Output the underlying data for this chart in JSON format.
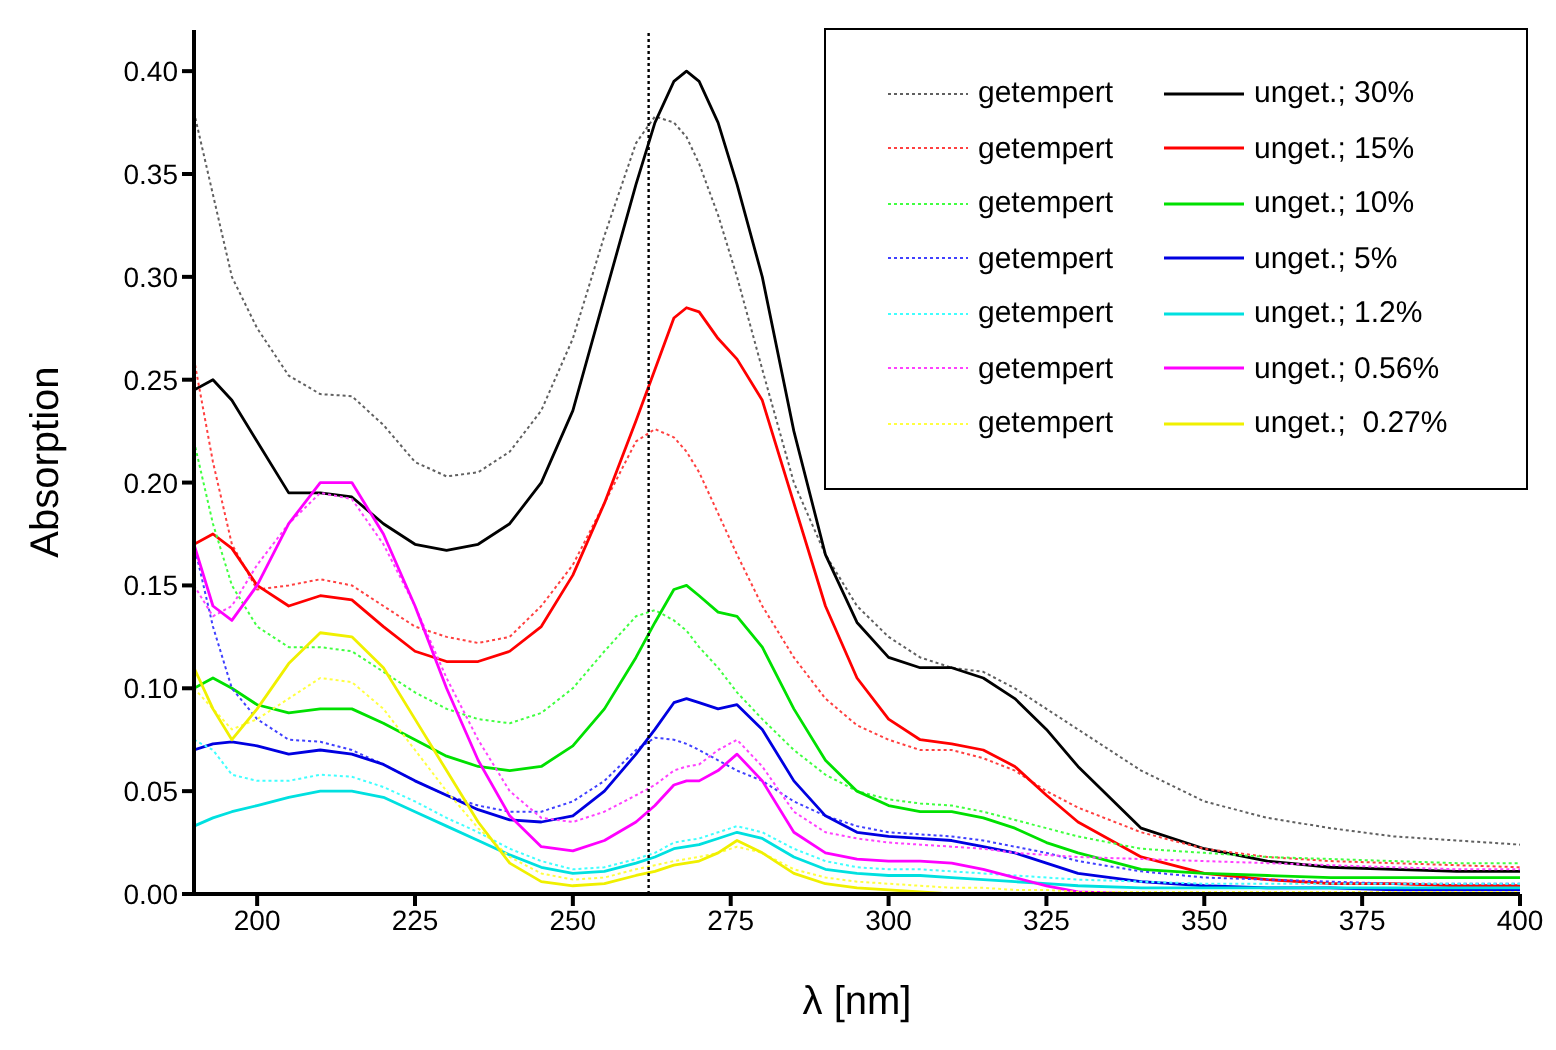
{
  "chart_data": {
    "type": "line",
    "xlabel": "λ [nm]",
    "ylabel": "Absorption",
    "x": [
      190,
      193,
      196,
      200,
      205,
      210,
      215,
      220,
      225,
      230,
      235,
      240,
      245,
      250,
      255,
      260,
      263,
      266,
      268,
      270,
      273,
      276,
      280,
      285,
      290,
      295,
      300,
      305,
      310,
      315,
      320,
      325,
      330,
      340,
      350,
      360,
      370,
      380,
      390,
      400
    ],
    "xlim": [
      190,
      400
    ],
    "xticks": [
      200,
      225,
      250,
      275,
      300,
      325,
      350,
      375,
      400
    ],
    "ylim": [
      0,
      0.42
    ],
    "yticks": [
      {
        "value": 0,
        "label": "0.00"
      },
      {
        "value": 0.05,
        "label": "0.05"
      },
      {
        "value": 0.1,
        "label": "0.10"
      },
      {
        "value": 0.15,
        "label": "0.15"
      },
      {
        "value": 0.2,
        "label": "0.20"
      },
      {
        "value": 0.25,
        "label": "0.25"
      },
      {
        "value": 0.3,
        "label": "0.30"
      },
      {
        "value": 0.35,
        "label": "0.35"
      },
      {
        "value": 0.4,
        "label": "0.40"
      }
    ],
    "legend": "top right",
    "grid": false,
    "marker": "none",
    "ref_lines": [
      {
        "axis": "x",
        "value": 262,
        "color": "#000000",
        "line_style": "dotted"
      }
    ],
    "series": [
      {
        "name": "getempert",
        "color": "#606060",
        "line_style": "dotted",
        "values": [
          0.38,
          0.34,
          0.3,
          0.275,
          0.252,
          0.243,
          0.242,
          0.228,
          0.21,
          0.203,
          0.205,
          0.215,
          0.235,
          0.27,
          0.32,
          0.365,
          0.378,
          0.375,
          0.368,
          0.355,
          0.33,
          0.3,
          0.255,
          0.2,
          0.165,
          0.14,
          0.125,
          0.115,
          0.11,
          0.108,
          0.1,
          0.09,
          0.08,
          0.06,
          0.045,
          0.037,
          0.032,
          0.028,
          0.026,
          0.024
        ]
      },
      {
        "name": "unget.; 30%",
        "color": "#000000",
        "line_style": "solid",
        "values": [
          0.245,
          0.25,
          0.24,
          0.22,
          0.195,
          0.195,
          0.193,
          0.18,
          0.17,
          0.167,
          0.17,
          0.18,
          0.2,
          0.235,
          0.29,
          0.345,
          0.375,
          0.395,
          0.4,
          0.395,
          0.375,
          0.345,
          0.3,
          0.225,
          0.165,
          0.132,
          0.115,
          0.11,
          0.11,
          0.105,
          0.095,
          0.08,
          0.062,
          0.032,
          0.022,
          0.016,
          0.013,
          0.012,
          0.011,
          0.011
        ]
      },
      {
        "name": "getempert",
        "color": "#ff4040",
        "line_style": "dotted",
        "values": [
          0.26,
          0.21,
          0.17,
          0.148,
          0.15,
          0.153,
          0.15,
          0.14,
          0.13,
          0.125,
          0.122,
          0.125,
          0.14,
          0.16,
          0.19,
          0.22,
          0.226,
          0.222,
          0.215,
          0.205,
          0.185,
          0.165,
          0.14,
          0.115,
          0.095,
          0.082,
          0.075,
          0.07,
          0.07,
          0.066,
          0.06,
          0.05,
          0.042,
          0.03,
          0.022,
          0.018,
          0.016,
          0.015,
          0.014,
          0.013
        ]
      },
      {
        "name": "unget.; 15%",
        "color": "#ff0000",
        "line_style": "solid",
        "values": [
          0.17,
          0.175,
          0.168,
          0.15,
          0.14,
          0.145,
          0.143,
          0.13,
          0.118,
          0.113,
          0.113,
          0.118,
          0.13,
          0.155,
          0.19,
          0.23,
          0.255,
          0.28,
          0.285,
          0.283,
          0.27,
          0.26,
          0.24,
          0.19,
          0.14,
          0.105,
          0.085,
          0.075,
          0.073,
          0.07,
          0.062,
          0.048,
          0.035,
          0.018,
          0.01,
          0.007,
          0.005,
          0.005,
          0.004,
          0.004
        ]
      },
      {
        "name": "getempert",
        "color": "#40ff40",
        "line_style": "dotted",
        "values": [
          0.22,
          0.18,
          0.15,
          0.13,
          0.12,
          0.12,
          0.118,
          0.108,
          0.098,
          0.09,
          0.085,
          0.083,
          0.088,
          0.1,
          0.118,
          0.135,
          0.138,
          0.133,
          0.128,
          0.12,
          0.11,
          0.098,
          0.085,
          0.07,
          0.058,
          0.05,
          0.046,
          0.044,
          0.043,
          0.04,
          0.036,
          0.032,
          0.028,
          0.022,
          0.02,
          0.018,
          0.017,
          0.016,
          0.015,
          0.015
        ]
      },
      {
        "name": "unget.; 10%",
        "color": "#00e000",
        "line_style": "solid",
        "values": [
          0.1,
          0.105,
          0.1,
          0.092,
          0.088,
          0.09,
          0.09,
          0.083,
          0.075,
          0.067,
          0.062,
          0.06,
          0.062,
          0.072,
          0.09,
          0.115,
          0.132,
          0.148,
          0.15,
          0.145,
          0.137,
          0.135,
          0.12,
          0.09,
          0.065,
          0.05,
          0.043,
          0.04,
          0.04,
          0.037,
          0.032,
          0.025,
          0.02,
          0.012,
          0.01,
          0.009,
          0.008,
          0.008,
          0.008,
          0.008
        ]
      },
      {
        "name": "getempert",
        "color": "#4040ff",
        "line_style": "dotted",
        "values": [
          0.17,
          0.13,
          0.1,
          0.085,
          0.075,
          0.074,
          0.07,
          0.063,
          0.055,
          0.048,
          0.043,
          0.04,
          0.04,
          0.045,
          0.055,
          0.07,
          0.076,
          0.075,
          0.073,
          0.07,
          0.065,
          0.06,
          0.055,
          0.045,
          0.038,
          0.033,
          0.03,
          0.029,
          0.028,
          0.026,
          0.023,
          0.02,
          0.016,
          0.011,
          0.008,
          0.007,
          0.006,
          0.005,
          0.005,
          0.005
        ]
      },
      {
        "name": "unget.; 5%",
        "color": "#0000e0",
        "line_style": "solid",
        "values": [
          0.07,
          0.073,
          0.074,
          0.072,
          0.068,
          0.07,
          0.068,
          0.063,
          0.055,
          0.048,
          0.041,
          0.036,
          0.035,
          0.038,
          0.05,
          0.068,
          0.08,
          0.093,
          0.095,
          0.093,
          0.09,
          0.092,
          0.08,
          0.055,
          0.038,
          0.03,
          0.028,
          0.027,
          0.026,
          0.023,
          0.02,
          0.015,
          0.01,
          0.006,
          0.004,
          0.003,
          0.003,
          0.002,
          0.002,
          0.002
        ]
      },
      {
        "name": "getempert",
        "color": "#40ffff",
        "line_style": "dotted",
        "values": [
          0.075,
          0.07,
          0.058,
          0.055,
          0.055,
          0.058,
          0.057,
          0.052,
          0.045,
          0.037,
          0.03,
          0.022,
          0.016,
          0.012,
          0.013,
          0.017,
          0.02,
          0.025,
          0.026,
          0.027,
          0.03,
          0.033,
          0.03,
          0.022,
          0.016,
          0.013,
          0.012,
          0.012,
          0.011,
          0.01,
          0.009,
          0.008,
          0.007,
          0.006,
          0.005,
          0.005,
          0.005,
          0.005,
          0.005,
          0.005
        ]
      },
      {
        "name": "unget.; 1.2%",
        "color": "#00e0e0",
        "line_style": "solid",
        "values": [
          0.033,
          0.037,
          0.04,
          0.043,
          0.047,
          0.05,
          0.05,
          0.047,
          0.04,
          0.033,
          0.026,
          0.019,
          0.013,
          0.01,
          0.011,
          0.015,
          0.018,
          0.022,
          0.023,
          0.024,
          0.027,
          0.03,
          0.027,
          0.018,
          0.012,
          0.01,
          0.009,
          0.009,
          0.008,
          0.007,
          0.006,
          0.005,
          0.004,
          0.003,
          0.003,
          0.003,
          0.003,
          0.003,
          0.003,
          0.003
        ]
      },
      {
        "name": "getempert",
        "color": "#ff40ff",
        "line_style": "dotted",
        "values": [
          0.15,
          0.135,
          0.14,
          0.16,
          0.18,
          0.195,
          0.192,
          0.17,
          0.14,
          0.105,
          0.075,
          0.05,
          0.037,
          0.035,
          0.04,
          0.048,
          0.053,
          0.06,
          0.062,
          0.063,
          0.07,
          0.075,
          0.062,
          0.04,
          0.03,
          0.027,
          0.025,
          0.024,
          0.023,
          0.022,
          0.02,
          0.019,
          0.018,
          0.017,
          0.016,
          0.015,
          0.014,
          0.013,
          0.012,
          0.012
        ]
      },
      {
        "name": "unget.; 0.56%",
        "color": "#ff00ff",
        "line_style": "solid",
        "values": [
          0.17,
          0.14,
          0.133,
          0.15,
          0.18,
          0.2,
          0.2,
          0.175,
          0.14,
          0.1,
          0.065,
          0.038,
          0.023,
          0.021,
          0.026,
          0.035,
          0.043,
          0.053,
          0.055,
          0.055,
          0.06,
          0.068,
          0.055,
          0.03,
          0.02,
          0.017,
          0.016,
          0.016,
          0.015,
          0.012,
          0.008,
          0.004,
          0.001,
          0,
          null,
          null,
          null,
          null,
          null,
          null
        ]
      },
      {
        "name": "getempert",
        "color": "#ffff40",
        "line_style": "dotted",
        "values": [
          0.1,
          0.09,
          0.08,
          0.085,
          0.095,
          0.105,
          0.103,
          0.09,
          0.07,
          0.05,
          0.032,
          0.018,
          0.01,
          0.007,
          0.008,
          0.012,
          0.014,
          0.016,
          0.017,
          0.018,
          0.02,
          0.023,
          0.02,
          0.012,
          0.008,
          0.006,
          0.005,
          0.004,
          0.003,
          0.003,
          0.002,
          0.002,
          0.001,
          0.001,
          0.001,
          0.001,
          0.001,
          0.001,
          0.001,
          0.001
        ]
      },
      {
        "name": "unget.;  0.27%",
        "color": "#f0f000",
        "line_style": "solid",
        "values": [
          0.11,
          0.09,
          0.075,
          0.09,
          0.112,
          0.127,
          0.125,
          0.11,
          0.085,
          0.06,
          0.035,
          0.015,
          0.006,
          0.004,
          0.005,
          0.009,
          0.011,
          0.014,
          0.015,
          0.016,
          0.02,
          0.026,
          0.02,
          0.01,
          0.005,
          0.003,
          0.002,
          0.001,
          0,
          0,
          0,
          0,
          0,
          0,
          0,
          0,
          0,
          0,
          0,
          0
        ]
      }
    ]
  }
}
